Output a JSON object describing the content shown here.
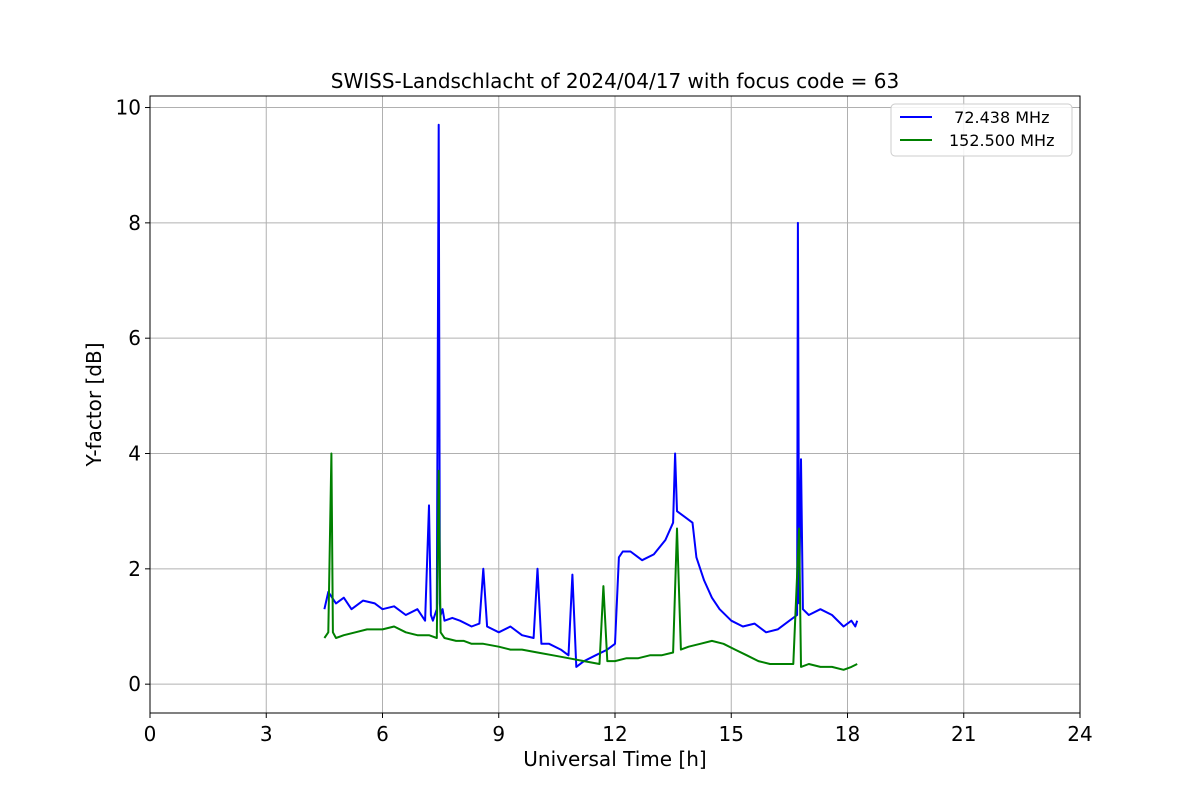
{
  "chart_data": {
    "type": "line",
    "title": "SWISS-Landschlacht of 2024/04/17 with focus code = 63",
    "xlabel": "Universal Time [h]",
    "ylabel": "Y-factor [dB]",
    "xlim": [
      0,
      24
    ],
    "ylim": [
      -0.5,
      10.2
    ],
    "xticks": [
      0,
      3,
      6,
      9,
      12,
      15,
      18,
      21,
      24
    ],
    "yticks": [
      0,
      2,
      4,
      6,
      8,
      10
    ],
    "grid": true,
    "legend_position": "top-right",
    "series": [
      {
        "name": "  72.438 MHz",
        "color": "#0000ff",
        "x": [
          4.5,
          4.6,
          4.8,
          5.0,
          5.2,
          5.5,
          5.8,
          6.0,
          6.3,
          6.6,
          6.9,
          7.1,
          7.2,
          7.25,
          7.3,
          7.4,
          7.45,
          7.48,
          7.5,
          7.55,
          7.6,
          7.8,
          8.0,
          8.3,
          8.5,
          8.6,
          8.7,
          9.0,
          9.3,
          9.6,
          9.9,
          10.0,
          10.1,
          10.3,
          10.6,
          10.8,
          10.9,
          11.0,
          11.2,
          11.5,
          11.8,
          12.0,
          12.1,
          12.2,
          12.4,
          12.7,
          13.0,
          13.3,
          13.5,
          13.55,
          13.6,
          13.8,
          14.0,
          14.1,
          14.3,
          14.5,
          14.7,
          15.0,
          15.3,
          15.6,
          15.9,
          16.2,
          16.5,
          16.7,
          16.72,
          16.75,
          16.8,
          16.85,
          17.0,
          17.3,
          17.6,
          17.9,
          18.1,
          18.2,
          18.25
        ],
        "y": [
          1.3,
          1.6,
          1.4,
          1.5,
          1.3,
          1.45,
          1.4,
          1.3,
          1.35,
          1.2,
          1.3,
          1.1,
          3.1,
          1.2,
          1.1,
          1.3,
          9.7,
          1.4,
          1.2,
          1.3,
          1.1,
          1.15,
          1.1,
          1.0,
          1.05,
          2.0,
          1.0,
          0.9,
          1.0,
          0.85,
          0.8,
          2.0,
          0.7,
          0.7,
          0.6,
          0.5,
          1.9,
          0.3,
          0.4,
          0.5,
          0.6,
          0.7,
          2.2,
          2.3,
          2.3,
          2.15,
          2.25,
          2.5,
          2.8,
          4.0,
          3.0,
          2.9,
          2.8,
          2.2,
          1.8,
          1.5,
          1.3,
          1.1,
          1.0,
          1.05,
          0.9,
          0.95,
          1.1,
          1.2,
          8.0,
          1.4,
          3.9,
          1.3,
          1.2,
          1.3,
          1.2,
          1.0,
          1.1,
          1.0,
          1.1
        ]
      },
      {
        "name": "152.500 MHz",
        "color": "#008000",
        "x": [
          4.5,
          4.6,
          4.68,
          4.72,
          4.8,
          5.0,
          5.3,
          5.6,
          6.0,
          6.3,
          6.6,
          6.9,
          7.2,
          7.4,
          7.45,
          7.5,
          7.6,
          7.9,
          8.1,
          8.3,
          8.6,
          9.0,
          9.3,
          9.6,
          10.0,
          10.4,
          10.8,
          11.2,
          11.6,
          11.7,
          11.8,
          12.0,
          12.3,
          12.6,
          12.9,
          13.2,
          13.5,
          13.6,
          13.7,
          13.9,
          14.2,
          14.5,
          14.8,
          15.1,
          15.4,
          15.7,
          16.0,
          16.3,
          16.6,
          16.75,
          16.8,
          17.0,
          17.3,
          17.6,
          17.9,
          18.1,
          18.25
        ],
        "y": [
          0.8,
          0.9,
          4.0,
          0.9,
          0.8,
          0.85,
          0.9,
          0.95,
          0.95,
          1.0,
          0.9,
          0.85,
          0.85,
          0.8,
          3.7,
          0.9,
          0.8,
          0.75,
          0.75,
          0.7,
          0.7,
          0.65,
          0.6,
          0.6,
          0.55,
          0.5,
          0.45,
          0.4,
          0.35,
          1.7,
          0.4,
          0.4,
          0.45,
          0.45,
          0.5,
          0.5,
          0.55,
          2.7,
          0.6,
          0.65,
          0.7,
          0.75,
          0.7,
          0.6,
          0.5,
          0.4,
          0.35,
          0.35,
          0.35,
          2.7,
          0.3,
          0.35,
          0.3,
          0.3,
          0.25,
          0.3,
          0.35
        ]
      }
    ]
  }
}
